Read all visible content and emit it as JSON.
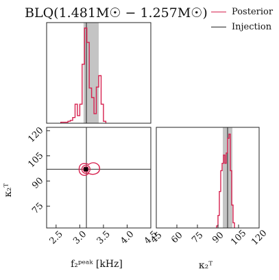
{
  "title": "BLQ(1.481M☉ − 1.257M☉)",
  "legend": [
    {
      "label": "Posterior",
      "color": "#d6204e"
    },
    {
      "label": "Injection",
      "color": "#222222"
    }
  ],
  "axes": {
    "fpeak_label": "f₂ᵖᵉᵃᵏ [kHz]",
    "kappa_label": "κ₂ᵀ"
  },
  "chart_data": [
    {
      "type": "histogram",
      "name": "fpeak-marginal",
      "xlim": [
        2.3,
        4.5
      ],
      "bins": [
        2.6,
        2.65,
        2.7,
        2.75,
        2.8,
        2.85,
        2.9,
        2.95,
        3.0,
        3.05,
        3.1,
        3.15,
        3.2,
        3.25,
        3.3,
        3.35,
        3.4,
        3.45,
        3.5
      ],
      "values": [
        0.01,
        0.01,
        0.01,
        0.02,
        0.03,
        0.06,
        0.2,
        0.08,
        0.2,
        0.62,
        1.0,
        0.85,
        0.37,
        0.27,
        0.1,
        0.38,
        0.5,
        0.2,
        0.02
      ],
      "injection": 3.14,
      "credible_interval": [
        3.08,
        3.4
      ],
      "color": "#d6204e"
    },
    {
      "type": "contour",
      "name": "joint",
      "xlim": [
        2.3,
        4.5
      ],
      "ylim": [
        62,
        122
      ],
      "xticks": [
        2.5,
        3.0,
        3.5,
        4.0,
        4.5
      ],
      "xticklabels": [
        "2.5",
        "3.0",
        "3.5",
        "4.0",
        "4.5"
      ],
      "yticks": [
        75,
        90,
        105,
        120
      ],
      "yticklabels": [
        "75",
        "90",
        "105",
        "120"
      ],
      "injection": {
        "x": 3.14,
        "y": 97
      },
      "peak": {
        "x": 3.13,
        "y": 97
      },
      "color": "#d6204e"
    },
    {
      "type": "histogram",
      "name": "kappa-marginal",
      "xlim": [
        45,
        120
      ],
      "xticks": [
        45,
        60,
        75,
        90,
        105,
        120
      ],
      "xticklabels": [
        "45",
        "60",
        "75",
        "90",
        "105",
        "120"
      ],
      "bins": [
        89,
        90,
        91,
        92,
        93,
        94,
        95,
        96,
        97,
        98,
        99,
        100,
        101
      ],
      "values": [
        0.02,
        0.12,
        0.35,
        0.55,
        0.62,
        0.7,
        0.62,
        0.72,
        0.86,
        0.9,
        0.55,
        0.22,
        0.05
      ],
      "injection": 97,
      "credible_interval": [
        93.5,
        100.5
      ],
      "color": "#d6204e"
    }
  ]
}
